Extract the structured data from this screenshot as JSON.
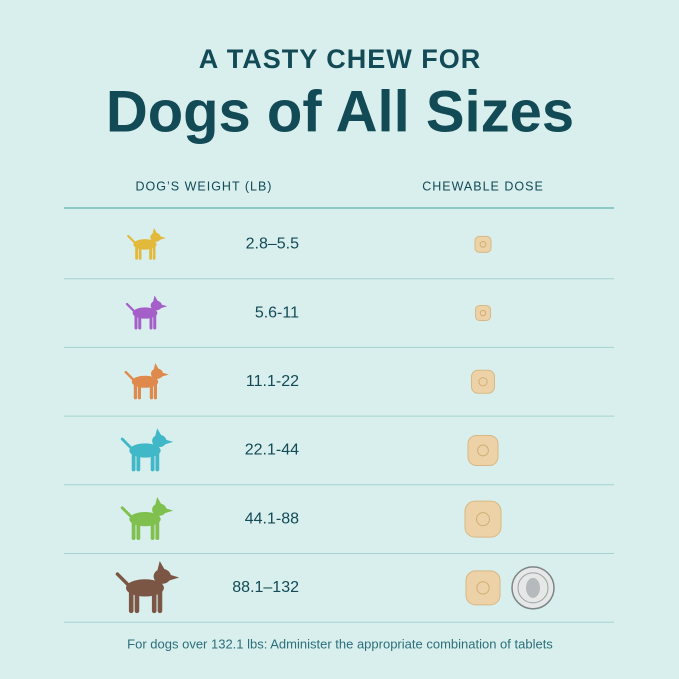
{
  "header": {
    "kicker": "A TASTY CHEW FOR",
    "title": "Dogs of All Sizes"
  },
  "table": {
    "columns": [
      "DOG’S WEIGHT (LB)",
      "CHEWABLE DOSE"
    ],
    "rows": [
      [
        "2.8–5.5"
      ],
      [
        "5.6-11"
      ],
      [
        "11.1-22"
      ],
      [
        "22.1-44"
      ],
      [
        "44.1-88"
      ],
      [
        "88.1–132"
      ]
    ]
  },
  "footnote": "For dogs over 132.1 lbs: Administer the appropriate combination of tablets"
}
